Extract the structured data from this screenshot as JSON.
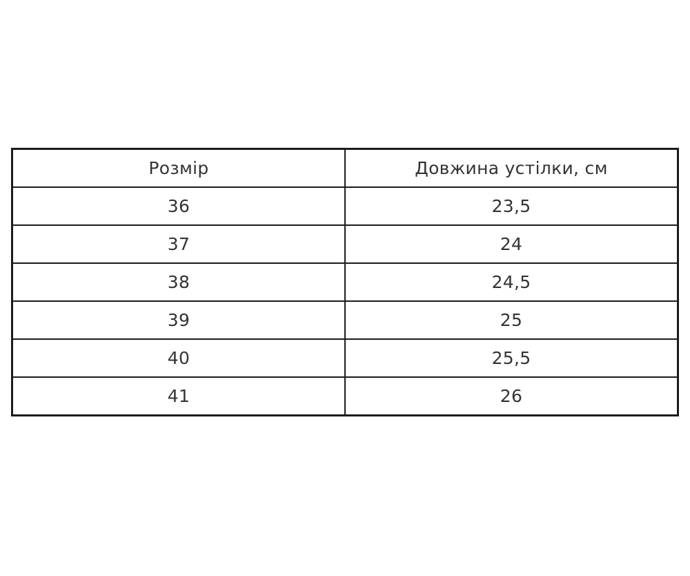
{
  "table": {
    "columns": [
      {
        "label": "Розмір"
      },
      {
        "label": "Довжина устілки, см"
      }
    ],
    "rows": [
      {
        "size": "36",
        "length": "23,5"
      },
      {
        "size": "37",
        "length": "24"
      },
      {
        "size": "38",
        "length": "24,5"
      },
      {
        "size": "39",
        "length": "25"
      },
      {
        "size": "40",
        "length": "25,5"
      },
      {
        "size": "41",
        "length": "26"
      }
    ]
  },
  "chart_data": {
    "type": "table",
    "title": "",
    "columns": [
      "Розмір",
      "Довжина устілки, см"
    ],
    "categories": [
      "36",
      "37",
      "38",
      "39",
      "40",
      "41"
    ],
    "values": [
      23.5,
      24,
      24.5,
      25,
      25.5,
      26
    ],
    "value_labels": [
      "23,5",
      "24",
      "24,5",
      "25",
      "25,5",
      "26"
    ],
    "xlabel": "Розмір",
    "ylabel": "Довжина устілки, см"
  },
  "colors": {
    "background": "#ffffff",
    "border": "#1b1b1b",
    "text": "#333333"
  }
}
